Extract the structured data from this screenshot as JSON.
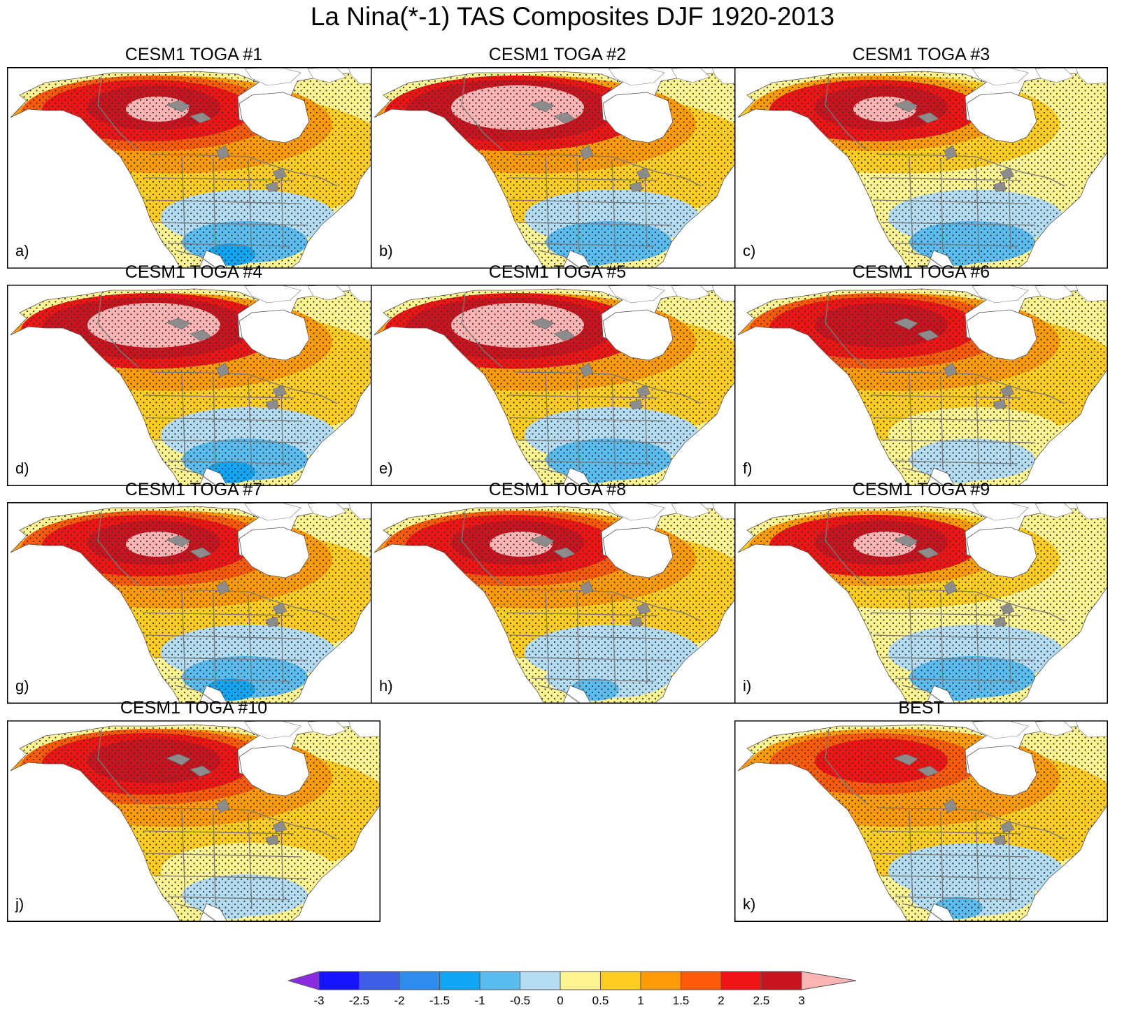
{
  "title": "La Nina(*-1) TAS Composites DJF 1920-2013",
  "panels": [
    {
      "title": "CESM1 TOGA #1",
      "letter": "a)",
      "scheme": "t1"
    },
    {
      "title": "CESM1 TOGA #2",
      "letter": "b)",
      "scheme": "t2"
    },
    {
      "title": "CESM1 TOGA #3",
      "letter": "c)",
      "scheme": "t3"
    },
    {
      "title": "CESM1 TOGA #4",
      "letter": "d)",
      "scheme": "t4"
    },
    {
      "title": "CESM1 TOGA #5",
      "letter": "e)",
      "scheme": "t2"
    },
    {
      "title": "CESM1 TOGA #6",
      "letter": "f)",
      "scheme": "t6"
    },
    {
      "title": "CESM1 TOGA #7",
      "letter": "g)",
      "scheme": "t1"
    },
    {
      "title": "CESM1 TOGA #8",
      "letter": "h)",
      "scheme": "t8"
    },
    {
      "title": "CESM1 TOGA #9",
      "letter": "i)",
      "scheme": "t3"
    },
    {
      "title": "CESM1 TOGA #10",
      "letter": "j)",
      "scheme": "t6"
    },
    {
      "title": "BEST",
      "letter": "k)",
      "scheme": "best"
    }
  ],
  "colorbar": {
    "ticks": [
      "-3",
      "-2.5",
      "-2",
      "-1.5",
      "-1",
      "-0.5",
      "0",
      "0.5",
      "1",
      "1.5",
      "2",
      "2.5",
      "3"
    ],
    "colors": [
      "#8a2be2",
      "#1414ff",
      "#3c5fe6",
      "#2e8cf0",
      "#10a6f5",
      "#5bbcef",
      "#b4dcf3",
      "#fff492",
      "#ffcc22",
      "#ff9a0a",
      "#ff5a0a",
      "#f01414",
      "#c8141e",
      "#ffb4b4"
    ]
  }
}
